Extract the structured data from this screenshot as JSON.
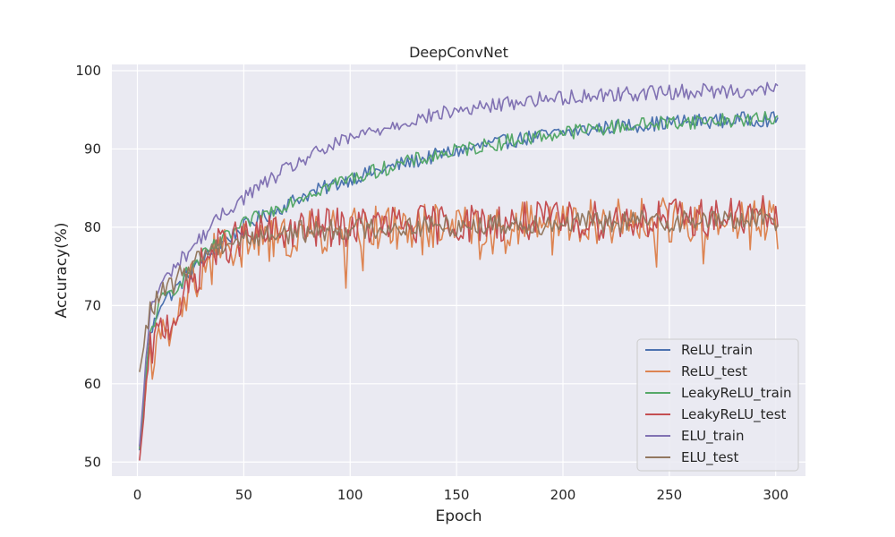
{
  "chart_data": {
    "type": "line",
    "title": "DeepConvNet",
    "xlabel": "Epoch",
    "ylabel": "Accuracy(%)",
    "xlim": [
      -12,
      314
    ],
    "ylim": [
      48.2,
      100.8
    ],
    "xticks": [
      0,
      50,
      100,
      150,
      200,
      250,
      300
    ],
    "yticks": [
      50,
      60,
      70,
      80,
      90,
      100
    ],
    "grid": true,
    "legend_position": "lower right",
    "x_start": 1,
    "x_step": 5,
    "series": [
      {
        "name": "ReLU_train",
        "color": "#4c72b0",
        "values": [
          51.5,
          66,
          70.5,
          71.5,
          73,
          74.5,
          75.8,
          77,
          78.2,
          79.2,
          80.2,
          81,
          81.5,
          82.3,
          83,
          83.8,
          84.3,
          84.8,
          85.3,
          85.8,
          86.3,
          86.7,
          87,
          87.4,
          87.8,
          88.2,
          88.5,
          88.8,
          89.2,
          89.5,
          89.8,
          90,
          90.3,
          90.6,
          90.8,
          91.1,
          91.3,
          91.5,
          91.7,
          91.9,
          92.1,
          92.3,
          92.4,
          92.6,
          92.7,
          92.9,
          93,
          93.1,
          93.2,
          93.3,
          93.4,
          93.5,
          93.5,
          93.6,
          93.6,
          93.6,
          93.7,
          93.8,
          93.8,
          93.8,
          93.8
        ]
      },
      {
        "name": "ReLU_test",
        "color": "#dd8452",
        "values": [
          52,
          63,
          65.5,
          66,
          70,
          73,
          75,
          76.5,
          77,
          77.5,
          78,
          78,
          78.3,
          78.5,
          78.7,
          79,
          79.2,
          79.3,
          79.5,
          79.6,
          79.8,
          79.8,
          79.9,
          80,
          80,
          80.1,
          80.1,
          80.2,
          80.2,
          80.3,
          80.3,
          80.3,
          80.4,
          80.4,
          80.5,
          80.5,
          80.5,
          80.6,
          80.6,
          80.6,
          80.7,
          80.7,
          80.7,
          80.8,
          80.8,
          80.8,
          80.9,
          80.9,
          80.9,
          81,
          81,
          81,
          81,
          81,
          81.1,
          81.1,
          81.1,
          81.1,
          81.2,
          81.2,
          81.2
        ]
      },
      {
        "name": "LeakyReLU_train",
        "color": "#55a868",
        "values": [
          51.7,
          66.5,
          70.5,
          71.8,
          73.3,
          75,
          76.3,
          77.5,
          78.5,
          79.5,
          80.5,
          81.2,
          81.8,
          82.5,
          83.2,
          83.9,
          84.4,
          84.9,
          85.4,
          85.9,
          86.3,
          86.7,
          87.1,
          87.5,
          87.9,
          88.2,
          88.6,
          88.9,
          89.2,
          89.5,
          89.8,
          90.1,
          90.3,
          90.6,
          90.8,
          91.1,
          91.3,
          91.5,
          91.7,
          91.9,
          92.1,
          92.3,
          92.4,
          92.6,
          92.7,
          92.9,
          93,
          93.1,
          93.2,
          93.3,
          93.4,
          93.5,
          93.5,
          93.6,
          93.6,
          93.7,
          93.7,
          93.8,
          93.8,
          93.8,
          93.9
        ]
      },
      {
        "name": "LeakyReLU_test",
        "color": "#c44e52",
        "values": [
          50.2,
          64,
          67,
          68,
          70.5,
          73,
          75.5,
          77,
          77.8,
          78.3,
          78.7,
          79,
          79.2,
          79.4,
          79.5,
          79.6,
          79.8,
          79.9,
          80,
          80,
          80.1,
          80.1,
          80.2,
          80.2,
          80.3,
          80.3,
          80.3,
          80.4,
          80.4,
          80.5,
          80.5,
          80.5,
          80.6,
          80.6,
          80.6,
          80.7,
          80.7,
          80.7,
          80.8,
          80.8,
          80.8,
          80.9,
          80.9,
          80.9,
          81,
          81,
          81,
          81.1,
          81.1,
          81.1,
          81.2,
          81.2,
          81.2,
          81.3,
          81.3,
          81.3,
          81.4,
          81.4,
          81.4,
          81.5,
          81.5
        ]
      },
      {
        "name": "ELU_train",
        "color": "#8172b3",
        "values": [
          52,
          69.5,
          72.5,
          74.5,
          76,
          77.5,
          79,
          80.5,
          81.8,
          83,
          84,
          85,
          85.8,
          86.7,
          87.5,
          88.3,
          89,
          89.7,
          90.3,
          90.9,
          91.4,
          91.9,
          92.3,
          92.7,
          93.1,
          93.5,
          93.8,
          94.1,
          94.4,
          94.7,
          94.9,
          95.1,
          95.3,
          95.5,
          95.7,
          95.9,
          96.1,
          96.3,
          96.4,
          96.5,
          96.6,
          96.7,
          96.8,
          96.9,
          97,
          97,
          97.1,
          97.1,
          97.2,
          97.2,
          97.3,
          97.3,
          97.3,
          97.4,
          97.4,
          97.4,
          97.5,
          97.5,
          97.5,
          97.6,
          97.6
        ]
      },
      {
        "name": "ELU_test",
        "color": "#937860",
        "values": [
          61.5,
          69.5,
          71.3,
          72.5,
          74,
          75.5,
          76.7,
          77.5,
          78,
          78.3,
          78.6,
          78.8,
          79,
          79.2,
          79.3,
          79.4,
          79.5,
          79.6,
          79.7,
          79.8,
          79.8,
          79.9,
          79.9,
          80,
          80,
          80.1,
          80.1,
          80.1,
          80.2,
          80.2,
          80.2,
          80.3,
          80.3,
          80.3,
          80.4,
          80.4,
          80.4,
          80.5,
          80.5,
          80.5,
          80.6,
          80.6,
          80.6,
          80.6,
          80.7,
          80.7,
          80.7,
          80.7,
          80.8,
          80.8,
          80.8,
          80.8,
          80.9,
          80.9,
          80.9,
          80.9,
          81,
          81,
          81,
          81,
          81
        ]
      }
    ]
  }
}
